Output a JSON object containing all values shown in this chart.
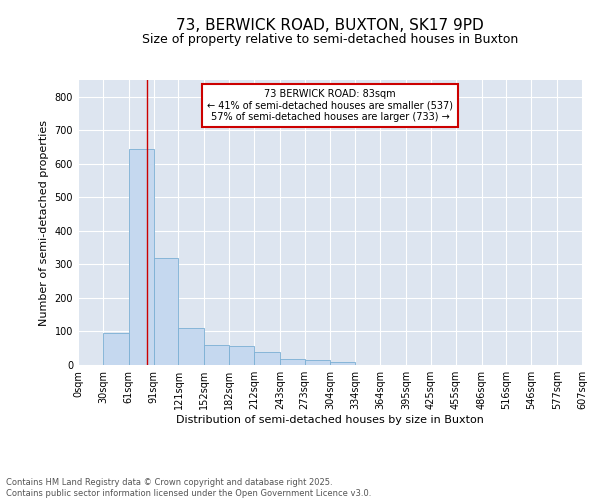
{
  "title_line1": "73, BERWICK ROAD, BUXTON, SK17 9PD",
  "title_line2": "Size of property relative to semi-detached houses in Buxton",
  "xlabel": "Distribution of semi-detached houses by size in Buxton",
  "ylabel": "Number of semi-detached properties",
  "bar_color": "#c5d8ef",
  "bar_edge_color": "#7bafd4",
  "bg_color": "#dde5f0",
  "grid_color": "#ffffff",
  "annotation_box_color": "#cc0000",
  "annotation_text": "73 BERWICK ROAD: 83sqm\n← 41% of semi-detached houses are smaller (537)\n57% of semi-detached houses are larger (733) →",
  "property_size": 83,
  "bins": [
    0,
    30,
    61,
    91,
    121,
    152,
    182,
    212,
    243,
    273,
    304,
    334,
    364,
    395,
    425,
    455,
    486,
    516,
    546,
    577,
    607
  ],
  "bin_labels": [
    "0sqm",
    "30sqm",
    "61sqm",
    "91sqm",
    "121sqm",
    "152sqm",
    "182sqm",
    "212sqm",
    "243sqm",
    "273sqm",
    "304sqm",
    "334sqm",
    "364sqm",
    "395sqm",
    "425sqm",
    "455sqm",
    "486sqm",
    "516sqm",
    "546sqm",
    "577sqm",
    "607sqm"
  ],
  "counts": [
    0,
    95,
    645,
    320,
    110,
    60,
    58,
    40,
    18,
    15,
    8,
    0,
    0,
    0,
    0,
    0,
    0,
    0,
    0,
    0
  ],
  "ylim": [
    0,
    850
  ],
  "yticks": [
    0,
    100,
    200,
    300,
    400,
    500,
    600,
    700,
    800
  ],
  "red_line_x": 83,
  "footnote": "Contains HM Land Registry data © Crown copyright and database right 2025.\nContains public sector information licensed under the Open Government Licence v3.0.",
  "title_fontsize": 11,
  "subtitle_fontsize": 9,
  "axis_label_fontsize": 8,
  "tick_fontsize": 7,
  "footnote_fontsize": 6,
  "annot_fontsize": 7
}
